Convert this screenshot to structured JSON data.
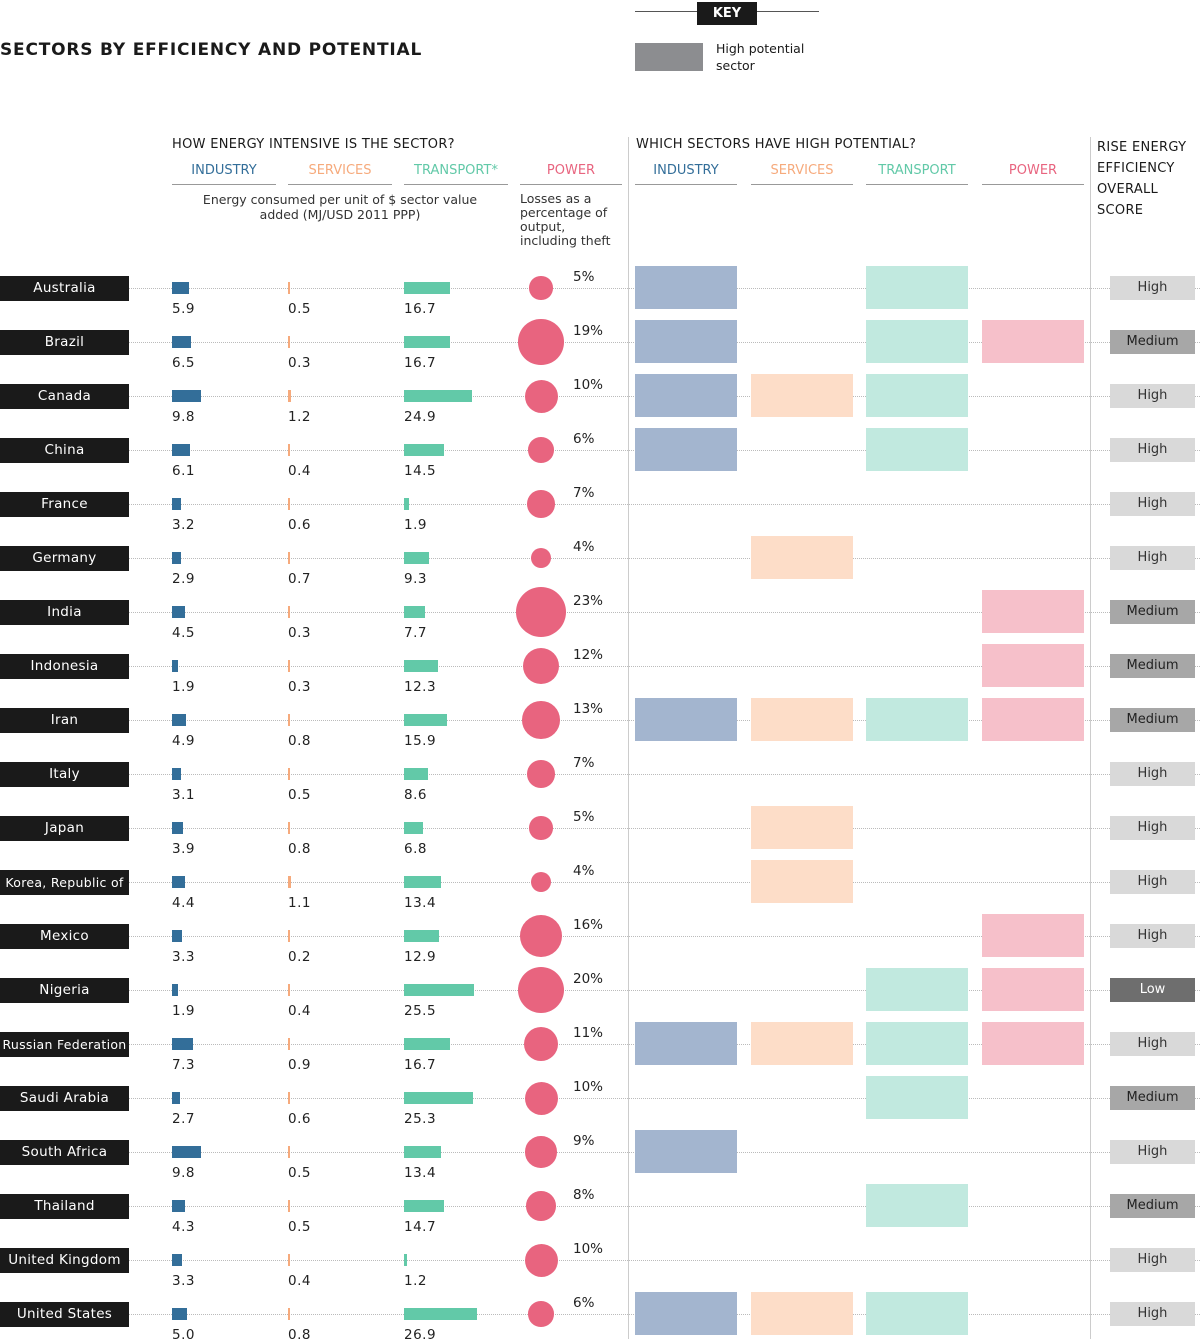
{
  "title": "SECTORS BY EFFICIENCY AND POTENTIAL",
  "key": {
    "heading": "KEY",
    "swatch_label": "High potential sector",
    "swatch_color": "#8c8d90"
  },
  "headers": {
    "intensity_heading": "HOW ENERGY INTENSIVE IS THE SECTOR?",
    "potential_heading": "WHICH SECTORS HAVE HIGH POTENTIAL?",
    "score_heading": "RISE ENERGY EFFICIENCY OVERALL SCORE",
    "industry": "INDUSTRY",
    "services": "SERVICES",
    "transport_star": "TRANSPORT*",
    "transport": "TRANSPORT",
    "power": "POWER",
    "energy_note": "Energy consumed per unit of $ sector value added (MJ/USD 2011 PPP)",
    "losses_note": "Losses as a percentage of output, including theft"
  },
  "colors": {
    "industry": "#336e99",
    "services": "#f6aa7c",
    "transport": "#62c9a8",
    "power": "#e8647f",
    "industry_hp": "#a3b5cf",
    "services_hp": "#fdddc8",
    "transport_hp": "#c1e9df",
    "power_hp": "#f6c0ca",
    "score_high": "#d9d9d9",
    "score_medium": "#a7a7a7",
    "score_low": "#6e6e6e"
  },
  "chart_data": {
    "type": "table",
    "columns": [
      "Country",
      "Industry",
      "Services",
      "Transport",
      "Power losses (%)",
      "High potential: Industry",
      "High potential: Services",
      "High potential: Transport",
      "High potential: Power",
      "Overall score"
    ],
    "rows": [
      {
        "country": "Australia",
        "industry": 5.9,
        "services": 0.5,
        "transport": 16.7,
        "power": 5,
        "power_label": "5%",
        "hp": [
          true,
          false,
          true,
          false
        ],
        "score": "High"
      },
      {
        "country": "Brazil",
        "industry": 6.5,
        "services": 0.3,
        "transport": 16.7,
        "power": 19,
        "power_label": "19%",
        "hp": [
          true,
          false,
          true,
          true
        ],
        "score": "Medium"
      },
      {
        "country": "Canada",
        "industry": 9.8,
        "services": 1.2,
        "transport": 24.9,
        "power": 10,
        "power_label": "10%",
        "hp": [
          true,
          true,
          true,
          false
        ],
        "score": "High"
      },
      {
        "country": "China",
        "industry": 6.1,
        "services": 0.4,
        "transport": 14.5,
        "power": 6,
        "power_label": "6%",
        "hp": [
          true,
          false,
          true,
          false
        ],
        "score": "High"
      },
      {
        "country": "France",
        "industry": 3.2,
        "services": 0.6,
        "transport": 1.9,
        "power": 7,
        "power_label": "7%",
        "hp": [
          false,
          false,
          false,
          false
        ],
        "score": "High"
      },
      {
        "country": "Germany",
        "industry": 2.9,
        "services": 0.7,
        "transport": 9.3,
        "power": 4,
        "power_label": "4%",
        "hp": [
          false,
          true,
          false,
          false
        ],
        "score": "High"
      },
      {
        "country": "India",
        "industry": 4.5,
        "services": 0.3,
        "transport": 7.7,
        "power": 23,
        "power_label": "23%",
        "hp": [
          false,
          false,
          false,
          true
        ],
        "score": "Medium"
      },
      {
        "country": "Indonesia",
        "industry": 1.9,
        "services": 0.3,
        "transport": 12.3,
        "power": 12,
        "power_label": "12%",
        "hp": [
          false,
          false,
          false,
          true
        ],
        "score": "Medium"
      },
      {
        "country": "Iran",
        "industry": 4.9,
        "services": 0.8,
        "transport": 15.9,
        "power": 13,
        "power_label": "13%",
        "hp": [
          true,
          true,
          true,
          true
        ],
        "score": "Medium"
      },
      {
        "country": "Italy",
        "industry": 3.1,
        "services": 0.5,
        "transport": 8.6,
        "power": 7,
        "power_label": "7%",
        "hp": [
          false,
          false,
          false,
          false
        ],
        "score": "High"
      },
      {
        "country": "Japan",
        "industry": 3.9,
        "services": 0.8,
        "transport": 6.8,
        "power": 5,
        "power_label": "5%",
        "hp": [
          false,
          true,
          false,
          false
        ],
        "score": "High"
      },
      {
        "country": "Korea, Republic of",
        "industry": 4.4,
        "services": 1.1,
        "transport": 13.4,
        "power": 4,
        "power_label": "4%",
        "hp": [
          false,
          true,
          false,
          false
        ],
        "score": "High"
      },
      {
        "country": "Mexico",
        "industry": 3.3,
        "services": 0.2,
        "transport": 12.9,
        "power": 16,
        "power_label": "16%",
        "hp": [
          false,
          false,
          false,
          true
        ],
        "score": "High"
      },
      {
        "country": "Nigeria",
        "industry": 1.9,
        "services": 0.4,
        "transport": 25.5,
        "power": 20,
        "power_label": "20%",
        "hp": [
          false,
          false,
          true,
          true
        ],
        "score": "Low"
      },
      {
        "country": "Russian Federation",
        "industry": 7.3,
        "services": 0.9,
        "transport": 16.7,
        "power": 11,
        "power_label": "11%",
        "hp": [
          true,
          true,
          true,
          true
        ],
        "score": "High"
      },
      {
        "country": "Saudi Arabia",
        "industry": 2.7,
        "services": 0.6,
        "transport": 25.3,
        "power": 10,
        "power_label": "10%",
        "hp": [
          false,
          false,
          true,
          false
        ],
        "score": "Medium"
      },
      {
        "country": "South Africa",
        "industry": 9.8,
        "services": 0.5,
        "transport": 13.4,
        "power": 9,
        "power_label": "9%",
        "hp": [
          true,
          false,
          false,
          false
        ],
        "score": "High"
      },
      {
        "country": "Thailand",
        "industry": 4.3,
        "services": 0.5,
        "transport": 14.7,
        "power": 8,
        "power_label": "8%",
        "hp": [
          false,
          false,
          true,
          false
        ],
        "score": "Medium"
      },
      {
        "country": "United Kingdom",
        "industry": 3.3,
        "services": 0.4,
        "transport": 1.2,
        "power": 10,
        "power_label": "10%",
        "hp": [
          false,
          false,
          false,
          false
        ],
        "score": "High"
      },
      {
        "country": "United States",
        "industry": 5.0,
        "services": 0.8,
        "transport": 26.9,
        "power": 6,
        "power_label": "6%",
        "hp": [
          true,
          true,
          true,
          false
        ],
        "score": "High"
      }
    ]
  }
}
